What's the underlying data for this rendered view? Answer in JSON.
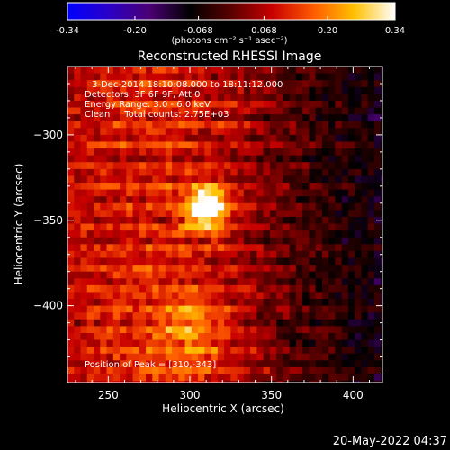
{
  "colorbar": {
    "min": -0.34,
    "max": 0.34,
    "tick_labels": [
      "-0.34",
      "-0.20",
      "-0.068",
      "0.068",
      "0.20",
      "0.34"
    ],
    "unit_label": "(photons cm⁻² s⁻¹ asec⁻²)",
    "colormap_stops": [
      "#0000ff",
      "#2a00c8",
      "#4b0073",
      "#000000",
      "#5a0000",
      "#c80000",
      "#ff5a00",
      "#ffc000",
      "#ffffff"
    ]
  },
  "chart_data": {
    "type": "heatmap",
    "title": "Reconstructed RHESSI Image",
    "xlabel": "Heliocentric X (arcsec)",
    "ylabel": "Heliocentric Y (arcsec)",
    "xlim": [
      225,
      418
    ],
    "ylim": [
      -445,
      -260
    ],
    "x_ticks": [
      250,
      300,
      350,
      400
    ],
    "y_ticks": [
      -300,
      -350,
      -400
    ],
    "x_tick_labels": [
      "250",
      "300",
      "350",
      "400"
    ],
    "y_tick_labels": [
      "−300",
      "−350",
      "−400"
    ],
    "peak": {
      "x": 310,
      "y": -343,
      "value": 0.34
    },
    "secondary_source": {
      "x": 300,
      "y": -415,
      "value": 0.12
    },
    "annotations": [
      "3-Dec-2014 18:10:08.000 to 18:11:12.000",
      "Detectors: 3F 6F 9F, Att 0",
      "Energy Range: 3.0 - 6.0 keV",
      "Clean     Total counts: 2.75E+03"
    ],
    "peak_label": "Position of Peak = [310,-343]"
  },
  "footer": {
    "date": "20-May-2022 04:37"
  }
}
